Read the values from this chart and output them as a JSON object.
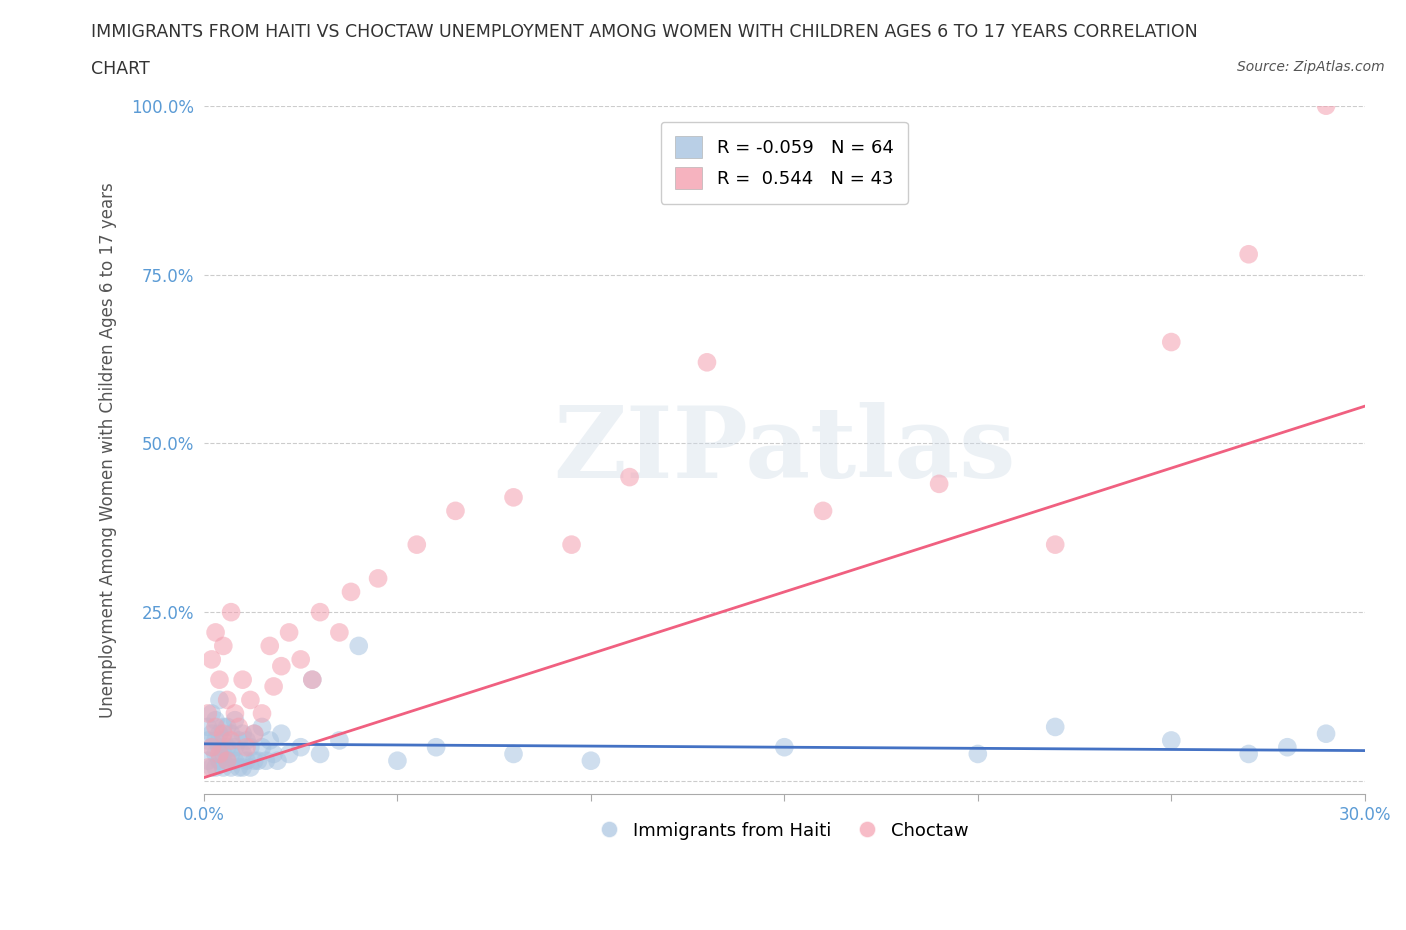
{
  "title_line1": "IMMIGRANTS FROM HAITI VS CHOCTAW UNEMPLOYMENT AMONG WOMEN WITH CHILDREN AGES 6 TO 17 YEARS CORRELATION",
  "title_line2": "CHART",
  "source": "Source: ZipAtlas.com",
  "xlabel": "Immigrants from Haiti",
  "ylabel": "Unemployment Among Women with Children Ages 6 to 17 years",
  "xlim": [
    0.0,
    0.3
  ],
  "ylim": [
    -0.02,
    1.0
  ],
  "xticks": [
    0.0,
    0.05,
    0.1,
    0.15,
    0.2,
    0.25,
    0.3
  ],
  "xtick_labels": [
    "0.0%",
    "",
    "",
    "",
    "",
    "",
    "30.0%"
  ],
  "yticks": [
    0.0,
    0.25,
    0.5,
    0.75,
    1.0
  ],
  "ytick_labels": [
    "",
    "25.0%",
    "50.0%",
    "75.0%",
    "100.0%"
  ],
  "watermark": "ZIPatlas",
  "haiti_color": "#a8c4e0",
  "choctaw_color": "#f4a0b0",
  "haiti_line_color": "#4472c4",
  "choctaw_line_color": "#f06080",
  "haiti_R": -0.059,
  "haiti_N": 64,
  "choctaw_R": 0.544,
  "choctaw_N": 43,
  "haiti_x": [
    0.001,
    0.001,
    0.001,
    0.002,
    0.002,
    0.002,
    0.002,
    0.003,
    0.003,
    0.003,
    0.003,
    0.004,
    0.004,
    0.004,
    0.004,
    0.005,
    0.005,
    0.005,
    0.005,
    0.006,
    0.006,
    0.006,
    0.007,
    0.007,
    0.007,
    0.008,
    0.008,
    0.008,
    0.009,
    0.009,
    0.01,
    0.01,
    0.01,
    0.011,
    0.011,
    0.012,
    0.012,
    0.013,
    0.013,
    0.014,
    0.015,
    0.015,
    0.016,
    0.017,
    0.018,
    0.019,
    0.02,
    0.022,
    0.025,
    0.028,
    0.03,
    0.035,
    0.04,
    0.05,
    0.06,
    0.08,
    0.1,
    0.15,
    0.2,
    0.22,
    0.25,
    0.27,
    0.28,
    0.29
  ],
  "haiti_y": [
    0.03,
    0.06,
    0.08,
    0.02,
    0.05,
    0.07,
    0.1,
    0.02,
    0.04,
    0.06,
    0.09,
    0.03,
    0.05,
    0.07,
    0.12,
    0.02,
    0.04,
    0.06,
    0.08,
    0.03,
    0.05,
    0.08,
    0.02,
    0.04,
    0.07,
    0.03,
    0.05,
    0.09,
    0.02,
    0.06,
    0.02,
    0.04,
    0.07,
    0.03,
    0.06,
    0.02,
    0.05,
    0.03,
    0.07,
    0.03,
    0.05,
    0.08,
    0.03,
    0.06,
    0.04,
    0.03,
    0.07,
    0.04,
    0.05,
    0.15,
    0.04,
    0.06,
    0.2,
    0.03,
    0.05,
    0.04,
    0.03,
    0.05,
    0.04,
    0.08,
    0.06,
    0.04,
    0.05,
    0.07
  ],
  "choctaw_x": [
    0.001,
    0.001,
    0.002,
    0.002,
    0.003,
    0.003,
    0.004,
    0.004,
    0.005,
    0.005,
    0.006,
    0.006,
    0.007,
    0.007,
    0.008,
    0.009,
    0.01,
    0.011,
    0.012,
    0.013,
    0.015,
    0.017,
    0.018,
    0.02,
    0.022,
    0.025,
    0.028,
    0.03,
    0.035,
    0.038,
    0.045,
    0.055,
    0.065,
    0.08,
    0.095,
    0.11,
    0.13,
    0.16,
    0.19,
    0.22,
    0.25,
    0.27,
    0.29
  ],
  "choctaw_y": [
    0.02,
    0.1,
    0.05,
    0.18,
    0.08,
    0.22,
    0.04,
    0.15,
    0.07,
    0.2,
    0.03,
    0.12,
    0.06,
    0.25,
    0.1,
    0.08,
    0.15,
    0.05,
    0.12,
    0.07,
    0.1,
    0.2,
    0.14,
    0.17,
    0.22,
    0.18,
    0.15,
    0.25,
    0.22,
    0.28,
    0.3,
    0.35,
    0.4,
    0.42,
    0.35,
    0.45,
    0.62,
    0.4,
    0.44,
    0.35,
    0.65,
    0.78,
    1.0
  ],
  "haiti_trend_x": [
    0.0,
    0.3
  ],
  "haiti_trend_y": [
    0.055,
    0.045
  ],
  "choctaw_trend_x": [
    0.0,
    0.3
  ],
  "choctaw_trend_y": [
    0.005,
    0.555
  ]
}
